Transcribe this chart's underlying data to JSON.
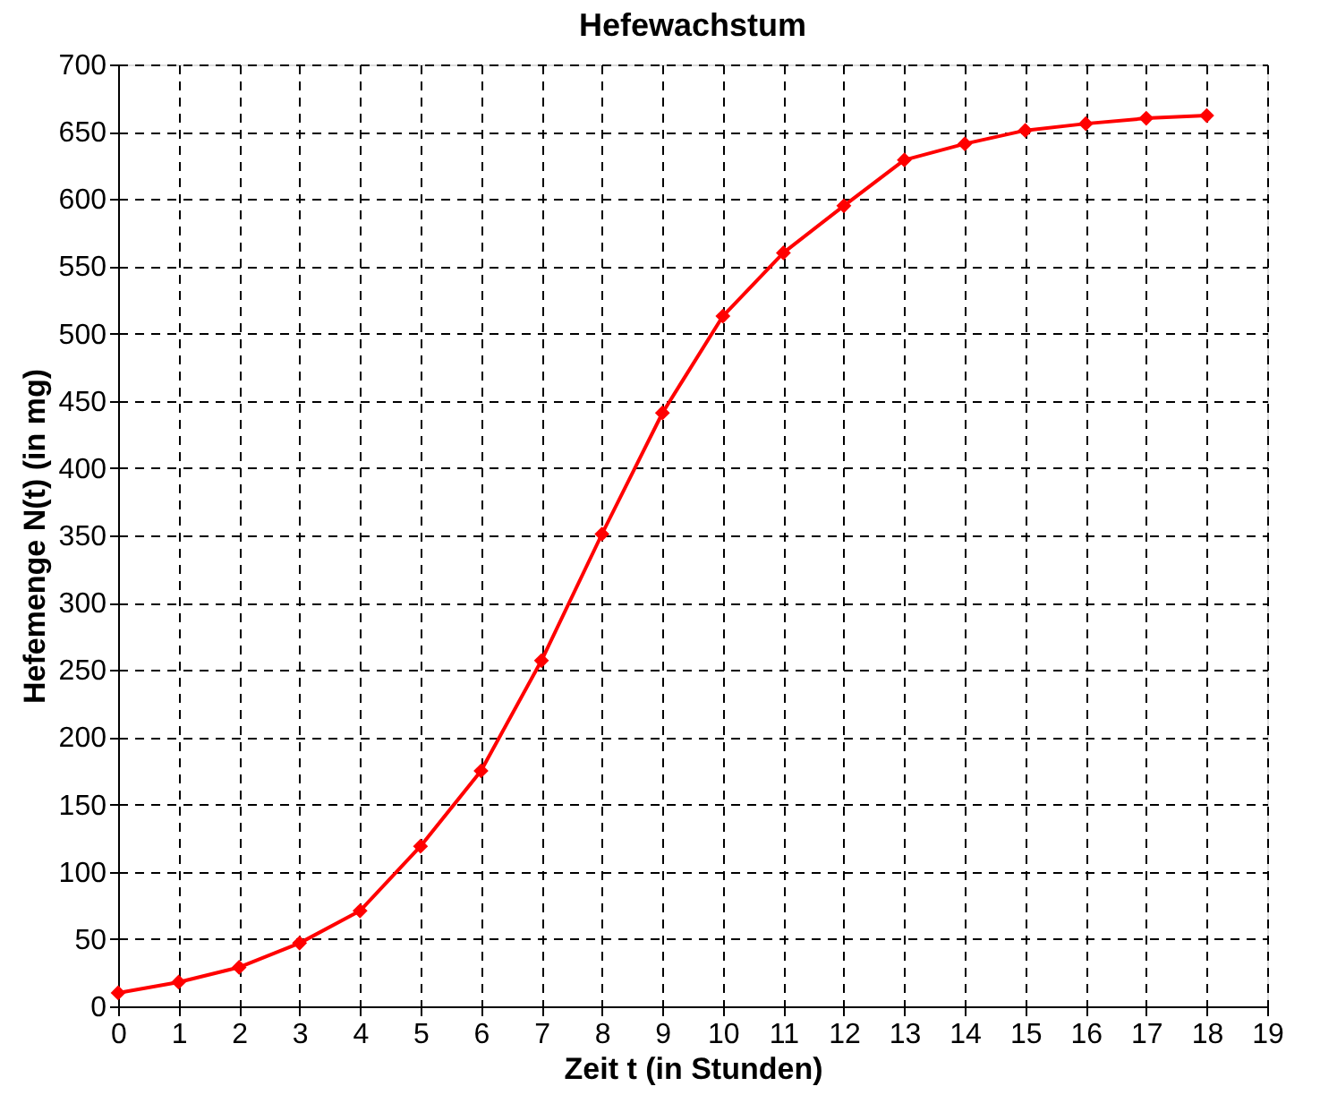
{
  "chart_data": {
    "type": "line",
    "title": "Hefewachstum",
    "xlabel": "Zeit t (in Stunden)",
    "ylabel": "Hefemenge N(t) (in mg)",
    "x": [
      0,
      1,
      2,
      3,
      4,
      5,
      6,
      7,
      8,
      9,
      10,
      11,
      12,
      13,
      14,
      15,
      16,
      17,
      18
    ],
    "series": [
      {
        "color": "#ff0000",
        "values": [
          10,
          18,
          29,
          47,
          71,
          119,
          175,
          257,
          351,
          441,
          513,
          560,
          595,
          629,
          641,
          651,
          656,
          660,
          662
        ]
      }
    ],
    "xlim": [
      0,
      19
    ],
    "xticks": [
      0,
      1,
      2,
      3,
      4,
      5,
      6,
      7,
      8,
      9,
      10,
      11,
      12,
      13,
      14,
      15,
      16,
      17,
      18,
      19
    ],
    "ylim": [
      0,
      700
    ],
    "yticks": [
      0,
      50,
      100,
      150,
      200,
      250,
      300,
      350,
      400,
      450,
      500,
      550,
      600,
      650,
      700
    ],
    "grid": true,
    "marker": "diamond",
    "line_style": "solid"
  }
}
